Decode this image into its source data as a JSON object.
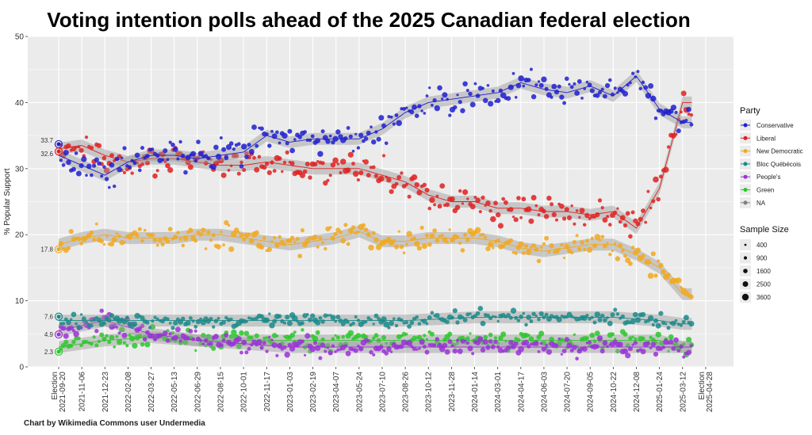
{
  "chart_data": {
    "type": "scatter",
    "title": "Voting intention polls ahead of the 2025 Canadian federal election",
    "xlabel": "",
    "ylabel": "% Popular Support",
    "ylim": [
      0,
      50
    ],
    "y_ticks": [
      0,
      10,
      20,
      30,
      40,
      50
    ],
    "x_ticks": [
      "Election 2021-09-20",
      "2021-11-06",
      "2021-12-23",
      "2022-02-08",
      "2022-03-27",
      "2022-05-13",
      "2022-06-29",
      "2022-08-15",
      "2022-10-01",
      "2022-11-17",
      "2023-01-03",
      "2023-02-19",
      "2023-04-07",
      "2023-05-24",
      "2023-07-10",
      "2023-08-26",
      "2023-10-12",
      "2023-11-28",
      "2024-01-14",
      "2024-03-01",
      "2024-04-17",
      "2024-06-03",
      "2024-07-20",
      "2024-09-05",
      "2024-10-22",
      "2024-12-08",
      "2025-01-24",
      "2025-03-12",
      "Election 2025-04-28"
    ],
    "grid": true,
    "legend_position": "right",
    "legend_title": "Party",
    "size_legend_title": "Sample Size",
    "size_legend_values": [
      400,
      900,
      1600,
      2500,
      3600
    ],
    "series": [
      {
        "name": "Conservative",
        "color": "#1f1fd1",
        "election_2021": 33.7,
        "trend": [
          [
            0,
            32
          ],
          [
            1,
            30.5
          ],
          [
            2,
            29
          ],
          [
            3,
            31
          ],
          [
            4,
            32
          ],
          [
            5,
            32
          ],
          [
            6,
            31.5
          ],
          [
            7,
            32
          ],
          [
            8,
            32.5
          ],
          [
            9,
            35
          ],
          [
            10,
            34
          ],
          [
            11,
            34.5
          ],
          [
            12,
            34.5
          ],
          [
            13,
            34.5
          ],
          [
            14,
            36
          ],
          [
            15,
            38.5
          ],
          [
            16,
            40
          ],
          [
            17,
            40.5
          ],
          [
            18,
            41
          ],
          [
            19,
            41.5
          ],
          [
            20,
            43
          ],
          [
            21,
            42
          ],
          [
            22,
            41.5
          ],
          [
            23,
            42.5
          ],
          [
            24,
            41
          ],
          [
            25,
            44
          ],
          [
            26,
            39
          ],
          [
            27,
            37
          ]
        ]
      },
      {
        "name": "Liberal",
        "color": "#e02020",
        "election_2021": 32.6,
        "trend": [
          [
            0,
            33
          ],
          [
            1,
            33.5
          ],
          [
            2,
            32
          ],
          [
            3,
            31
          ],
          [
            4,
            31.5
          ],
          [
            5,
            31.5
          ],
          [
            6,
            31
          ],
          [
            7,
            30.5
          ],
          [
            8,
            30.5
          ],
          [
            9,
            31
          ],
          [
            10,
            30.5
          ],
          [
            11,
            30
          ],
          [
            12,
            30
          ],
          [
            13,
            30
          ],
          [
            14,
            29
          ],
          [
            15,
            28
          ],
          [
            16,
            26
          ],
          [
            17,
            25
          ],
          [
            18,
            25
          ],
          [
            19,
            24
          ],
          [
            20,
            24
          ],
          [
            21,
            23.5
          ],
          [
            22,
            23.5
          ],
          [
            23,
            23
          ],
          [
            24,
            23.5
          ],
          [
            25,
            21
          ],
          [
            26,
            27
          ],
          [
            27,
            40
          ]
        ]
      },
      {
        "name": "New Democratic",
        "color": "#f2a81d",
        "election_2021": 17.8,
        "trend": [
          [
            0,
            18.5
          ],
          [
            1,
            19.5
          ],
          [
            2,
            20
          ],
          [
            3,
            19.5
          ],
          [
            4,
            19.5
          ],
          [
            5,
            19.5
          ],
          [
            6,
            20
          ],
          [
            7,
            20
          ],
          [
            8,
            19.5
          ],
          [
            9,
            19
          ],
          [
            10,
            18.5
          ],
          [
            11,
            19
          ],
          [
            12,
            19.5
          ],
          [
            13,
            20.5
          ],
          [
            14,
            19
          ],
          [
            15,
            19
          ],
          [
            16,
            19.5
          ],
          [
            17,
            19.5
          ],
          [
            18,
            19.5
          ],
          [
            19,
            19
          ],
          [
            20,
            18
          ],
          [
            21,
            17.5
          ],
          [
            22,
            18
          ],
          [
            23,
            18.5
          ],
          [
            24,
            18.5
          ],
          [
            25,
            17
          ],
          [
            26,
            15
          ],
          [
            27,
            11
          ]
        ]
      },
      {
        "name": "Bloc Québécois",
        "color": "#1a8a8a",
        "election_2021": 7.6,
        "trend": [
          [
            0,
            7
          ],
          [
            3,
            7
          ],
          [
            6,
            7
          ],
          [
            9,
            7
          ],
          [
            12,
            7
          ],
          [
            15,
            7
          ],
          [
            18,
            7.5
          ],
          [
            21,
            7.5
          ],
          [
            24,
            7.5
          ],
          [
            26,
            7
          ],
          [
            27,
            6.5
          ]
        ]
      },
      {
        "name": "People's",
        "color": "#9b30d9",
        "election_2021": 4.9,
        "trend": [
          [
            0,
            5.5
          ],
          [
            2,
            7
          ],
          [
            4,
            5
          ],
          [
            6,
            4
          ],
          [
            8,
            3.5
          ],
          [
            10,
            3
          ],
          [
            12,
            3
          ],
          [
            14,
            3
          ],
          [
            16,
            3
          ],
          [
            18,
            3
          ],
          [
            20,
            3
          ],
          [
            22,
            3
          ],
          [
            24,
            3
          ],
          [
            26,
            3
          ],
          [
            27,
            3
          ]
        ]
      },
      {
        "name": "Green",
        "color": "#2ac72a",
        "election_2021": 2.3,
        "trend": [
          [
            0,
            3
          ],
          [
            2,
            4
          ],
          [
            4,
            4.5
          ],
          [
            6,
            4
          ],
          [
            8,
            4
          ],
          [
            10,
            4
          ],
          [
            12,
            4
          ],
          [
            14,
            4
          ],
          [
            16,
            4
          ],
          [
            18,
            4
          ],
          [
            20,
            4
          ],
          [
            22,
            4
          ],
          [
            24,
            4
          ],
          [
            26,
            4
          ],
          [
            27,
            3
          ]
        ]
      },
      {
        "name": "NA",
        "color": "#808080"
      }
    ]
  },
  "election_labels": [
    {
      "series": "Conservative",
      "text": "33.7"
    },
    {
      "series": "Liberal",
      "text": "32.6"
    },
    {
      "series": "New Democratic",
      "text": "17.8"
    },
    {
      "series": "Bloc Québécois",
      "text": "7.6"
    },
    {
      "series": "People's",
      "text": "4.9"
    },
    {
      "series": "Green",
      "text": "2.3"
    }
  ],
  "credit": "Chart by Wikimedia Commons user Undermedia"
}
